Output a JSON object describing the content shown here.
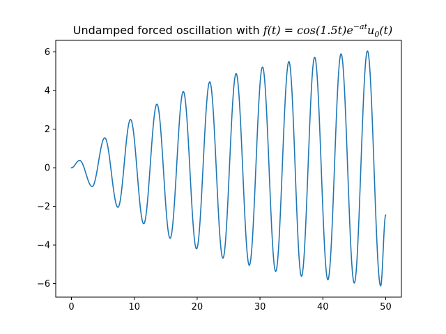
{
  "chart_data": {
    "type": "line",
    "title": {
      "prefix": "Undamped forced oscillation with ",
      "math_f": "f(t) = cos(1.5t)e",
      "math_exp": "−at",
      "math_u": "u",
      "math_sub": "0",
      "math_end": "(t)"
    },
    "xlabel": "",
    "ylabel": "",
    "xlim": [
      -2.5,
      52.5
    ],
    "ylim": [
      -6.7,
      6.6
    ],
    "xticks": [
      0,
      10,
      20,
      30,
      40,
      50
    ],
    "xtick_labels": [
      "0",
      "10",
      "20",
      "30",
      "40",
      "50"
    ],
    "yticks": [
      -6,
      -4,
      -2,
      0,
      2,
      4,
      6
    ],
    "ytick_labels": [
      "−6",
      "−4",
      "−2",
      "0",
      "2",
      "4",
      "6"
    ],
    "grid": false,
    "legend": "none",
    "series": [
      {
        "color": "#1f77b4",
        "t_range": [
          0,
          50
        ],
        "samples": 1001,
        "peaks": [
          {
            "x": 1.3,
            "y": 0.38
          },
          {
            "x": 3.3,
            "y": -0.97
          },
          {
            "x": 5.3,
            "y": 1.55
          },
          {
            "x": 7.4,
            "y": -2.05
          },
          {
            "x": 9.4,
            "y": 2.5
          },
          {
            "x": 11.5,
            "y": -2.9
          },
          {
            "x": 13.6,
            "y": 3.3
          },
          {
            "x": 15.7,
            "y": -3.65
          },
          {
            "x": 17.8,
            "y": 3.95
          },
          {
            "x": 19.9,
            "y": -4.2
          },
          {
            "x": 22.0,
            "y": 4.45
          },
          {
            "x": 24.1,
            "y": -4.68
          },
          {
            "x": 26.2,
            "y": 4.88
          },
          {
            "x": 28.3,
            "y": -5.05
          },
          {
            "x": 30.4,
            "y": 5.22
          },
          {
            "x": 32.5,
            "y": -5.37
          },
          {
            "x": 34.6,
            "y": 5.5
          },
          {
            "x": 36.6,
            "y": -5.62
          },
          {
            "x": 38.7,
            "y": 5.72
          },
          {
            "x": 40.8,
            "y": -5.8
          },
          {
            "x": 42.9,
            "y": 5.9
          },
          {
            "x": 45.0,
            "y": -5.97
          },
          {
            "x": 47.1,
            "y": 6.05
          },
          {
            "x": 49.2,
            "y": -6.12
          },
          {
            "x": 50.0,
            "y": -2.45
          }
        ]
      }
    ]
  }
}
